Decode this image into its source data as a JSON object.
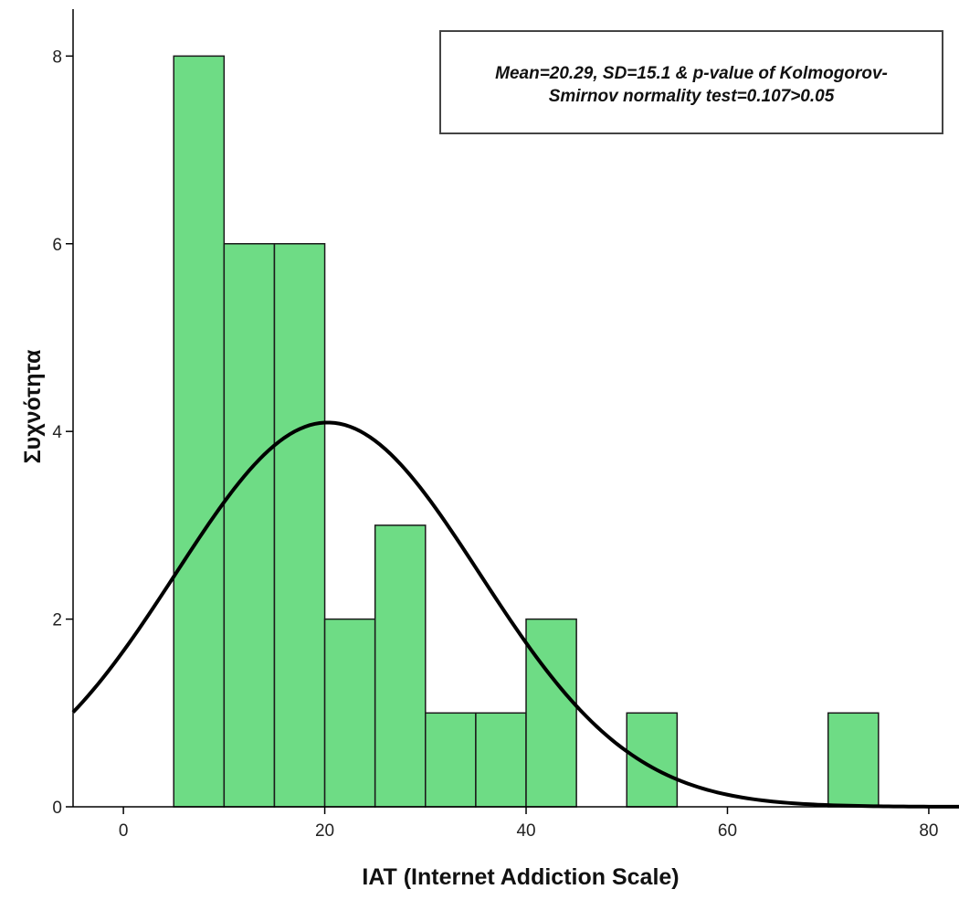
{
  "chart_data": {
    "type": "bar",
    "subtype": "histogram",
    "bin_width": 5,
    "bins": [
      {
        "start": 5,
        "end": 10,
        "count": 8
      },
      {
        "start": 10,
        "end": 15,
        "count": 6
      },
      {
        "start": 15,
        "end": 20,
        "count": 6
      },
      {
        "start": 20,
        "end": 25,
        "count": 2
      },
      {
        "start": 25,
        "end": 30,
        "count": 3
      },
      {
        "start": 30,
        "end": 35,
        "count": 1
      },
      {
        "start": 35,
        "end": 40,
        "count": 1
      },
      {
        "start": 40,
        "end": 45,
        "count": 2
      },
      {
        "start": 45,
        "end": 50,
        "count": 0
      },
      {
        "start": 50,
        "end": 55,
        "count": 1
      },
      {
        "start": 55,
        "end": 60,
        "count": 0
      },
      {
        "start": 60,
        "end": 65,
        "count": 0
      },
      {
        "start": 65,
        "end": 70,
        "count": 0
      },
      {
        "start": 70,
        "end": 75,
        "count": 1
      }
    ],
    "normal_curve": {
      "mean": 20.29,
      "sd": 15.1,
      "n": 31,
      "bin_width": 5
    },
    "xlim": [
      -5,
      83
    ],
    "ylim": [
      0,
      8.5
    ],
    "x_ticks": [
      0,
      20,
      40,
      60,
      80
    ],
    "y_ticks": [
      0,
      2,
      4,
      6,
      8
    ],
    "xlabel": "IAT (Internet Addiction Scale)",
    "ylabel": "Συχνότητα",
    "annotation": {
      "line1": "Mean=20.29, SD=15.1 & p-value of Kolmogorov-",
      "line2": "Smirnov normality test=0.107>0.05"
    },
    "colors": {
      "bar": "#6edc85",
      "bar_stroke": "#1a1a1a",
      "curve": "#000000"
    },
    "grid": false
  }
}
